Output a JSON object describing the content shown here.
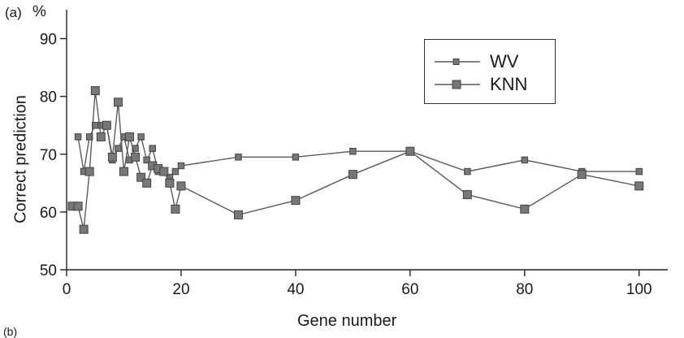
{
  "panel_label": "(a)",
  "next_panel_label": "(b)",
  "chart_data": {
    "type": "line",
    "title": "",
    "xlabel": "Gene number",
    "ylabel": "Correct prediction",
    "y_unit": "%",
    "xlim": [
      0,
      105
    ],
    "ylim": [
      50,
      95
    ],
    "xticks": [
      0,
      20,
      40,
      60,
      80,
      100
    ],
    "yticks": [
      50,
      60,
      70,
      80,
      90
    ],
    "grid": false,
    "legend_position": "top-right",
    "series": [
      {
        "name": "WV",
        "color": "#5a5a5a",
        "marker": "small-square",
        "x": [
          2,
          3,
          4,
          5,
          6,
          7,
          8,
          9,
          10,
          11,
          12,
          13,
          14,
          15,
          16,
          17,
          18,
          19,
          20,
          30,
          40,
          50,
          60,
          70,
          80,
          90,
          100
        ],
        "y": [
          73,
          67,
          73,
          75,
          75,
          75,
          69,
          71,
          73,
          69,
          71,
          73,
          69,
          71,
          67,
          67,
          66,
          67,
          68,
          69.5,
          69.5,
          70.5,
          70.5,
          67,
          69,
          67,
          67
        ]
      },
      {
        "name": "KNN",
        "color": "#5a5a5a",
        "marker": "large-square",
        "x": [
          1,
          2,
          3,
          4,
          5,
          6,
          7,
          8,
          9,
          10,
          11,
          12,
          13,
          14,
          15,
          16,
          17,
          18,
          19,
          20,
          30,
          40,
          50,
          60,
          70,
          80,
          90,
          100
        ],
        "y": [
          61,
          61,
          57,
          67,
          81,
          73,
          75,
          69.5,
          79,
          67,
          73,
          69.5,
          66,
          65,
          68,
          67.5,
          67,
          65,
          60.5,
          64.5,
          59.5,
          62,
          66.5,
          70.5,
          63,
          60.5,
          66.5,
          64.5
        ]
      }
    ]
  }
}
